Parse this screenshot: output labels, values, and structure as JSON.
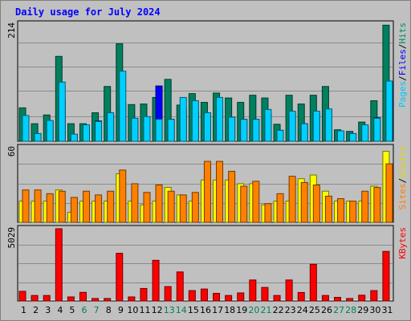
{
  "chart_data": {
    "type": "bar",
    "title": "Daily usage for July 2024",
    "categories": [
      "1",
      "2",
      "3",
      "4",
      "5",
      "6",
      "7",
      "8",
      "9",
      "10",
      "11",
      "12",
      "13",
      "14",
      "15",
      "16",
      "17",
      "18",
      "19",
      "20",
      "21",
      "22",
      "23",
      "24",
      "25",
      "26",
      "27",
      "28",
      "29",
      "30",
      "31"
    ],
    "weekend_days": [
      "6",
      "7",
      "13",
      "14",
      "20",
      "21",
      "27",
      "28"
    ],
    "panels": [
      {
        "id": "hits",
        "max_label": "214",
        "ymax": 214,
        "legend": [
          {
            "text": "Pages",
            "color": "#00c8ff"
          },
          {
            "text": "/",
            "color": "#000000"
          },
          {
            "text": "Files",
            "color": "#0000ff"
          },
          {
            "text": "/",
            "color": "#000000"
          },
          {
            "text": "Hits",
            "color": "#008b6a"
          }
        ],
        "series": [
          {
            "name": "Hits",
            "color": "#00805f",
            "offset": 0,
            "values": [
              61,
              32,
              48,
              155,
              32,
              32,
              52,
              100,
              178,
              67,
              68,
              80,
              113,
              66,
              87,
              71,
              88,
              79,
              71,
              84,
              79,
              31,
              84,
              68,
              84,
              100,
              21,
              18,
              35,
              74,
              212
            ]
          },
          {
            "name": "Files",
            "color": "#0000ff",
            "offset": 4,
            "values": [
              45,
              14,
              36,
              76,
              12,
              28,
              37,
              48,
              70,
              41,
              44,
              101,
              40,
              60,
              53,
              52,
              62,
              44,
              40,
              40,
              48,
              20,
              52,
              32,
              51,
              58,
              17,
              14,
              26,
              43,
              109
            ]
          },
          {
            "name": "Pages",
            "color": "#00d0ff",
            "offset": 4,
            "values": [
              47,
              14,
              38,
              108,
              13,
              30,
              36,
              52,
              128,
              42,
              45,
              40,
              40,
              80,
              74,
              52,
              80,
              44,
              40,
              40,
              58,
              20,
              55,
              32,
              55,
              59,
              19,
              14,
              30,
              42,
              110
            ]
          }
        ]
      },
      {
        "id": "visits",
        "max_label": "60",
        "ymax": 60,
        "legend": [
          {
            "text": "Sites",
            "color": "#ff8000"
          },
          {
            "text": "/",
            "color": "#000000"
          },
          {
            "text": "Visits",
            "color": "#e6d800"
          }
        ],
        "series": [
          {
            "name": "Visits",
            "color": "#ffff00",
            "offset": 0,
            "values": [
              17,
              17,
              17,
              26,
              8,
              17,
              17,
              17,
              39,
              17,
              14,
              17,
              28,
              22,
              17,
              34,
              34,
              34,
              31,
              31,
              14,
              17,
              17,
              35,
              38,
              25,
              17,
              17,
              17,
              29,
              57
            ]
          },
          {
            "name": "Sites",
            "color": "#ff8000",
            "offset": 4,
            "values": [
              26,
              26,
              23,
              25,
              20,
              25,
              22,
              25,
              42,
              31,
              24,
              30,
              25,
              22,
              24,
              49,
              49,
              41,
              29,
              33,
              15,
              23,
              37,
              32,
              30,
              21,
              19,
              17,
              25,
              28,
              47
            ]
          }
        ]
      },
      {
        "id": "kbytes",
        "max_label": "5029",
        "ymax": 5029,
        "legend": [
          {
            "text": "KBytes",
            "color": "#ff0000"
          }
        ],
        "series": [
          {
            "name": "KBytes",
            "color": "#ff0000",
            "offset": 0,
            "values": [
              670,
              380,
              380,
              5029,
              280,
              600,
              170,
              170,
              3320,
              280,
              870,
              2830,
              1000,
              2020,
              720,
              830,
              530,
              380,
              560,
              1460,
              940,
              380,
              1460,
              590,
              2550,
              380,
              250,
              170,
              400,
              720,
              3450
            ]
          }
        ]
      }
    ]
  }
}
